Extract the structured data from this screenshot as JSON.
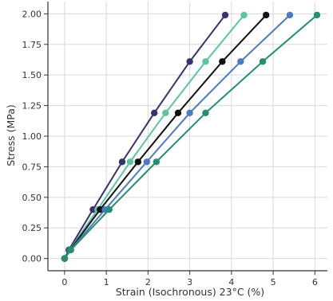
{
  "chart_data": {
    "type": "line",
    "title": "",
    "xlabel": "Strain (Isochronous) 23°C (%)",
    "ylabel": "Stress (MPa)",
    "xlim": [
      -0.4,
      6.3
    ],
    "ylim": [
      -0.1,
      2.1
    ],
    "xticks": [
      0,
      1,
      2,
      3,
      4,
      5,
      6
    ],
    "yticks": [
      "0.00",
      "0.25",
      "0.50",
      "0.75",
      "1.00",
      "1.25",
      "1.50",
      "1.75",
      "2.00"
    ],
    "grid": true,
    "legend": "none",
    "series": [
      {
        "color": "#3b3070",
        "points": [
          [
            0,
            0
          ],
          [
            0.1,
            0.07
          ],
          [
            0.68,
            0.4
          ],
          [
            1.38,
            0.79
          ],
          [
            2.15,
            1.19
          ],
          [
            3.0,
            1.61
          ],
          [
            3.85,
            1.99
          ]
        ]
      },
      {
        "color": "#5cc4a0",
        "points": [
          [
            0,
            0
          ],
          [
            0.12,
            0.07
          ],
          [
            0.79,
            0.4
          ],
          [
            1.57,
            0.79
          ],
          [
            2.42,
            1.19
          ],
          [
            3.38,
            1.61
          ],
          [
            4.3,
            1.99
          ]
        ]
      },
      {
        "color": "#111111",
        "points": [
          [
            0,
            0
          ],
          [
            0.13,
            0.07
          ],
          [
            0.85,
            0.4
          ],
          [
            1.76,
            0.79
          ],
          [
            2.72,
            1.19
          ],
          [
            3.78,
            1.61
          ],
          [
            4.83,
            1.99
          ]
        ]
      },
      {
        "color": "#4b7bbf",
        "points": [
          [
            0,
            0
          ],
          [
            0.14,
            0.07
          ],
          [
            0.97,
            0.4
          ],
          [
            1.97,
            0.79
          ],
          [
            3.0,
            1.19
          ],
          [
            4.22,
            1.61
          ],
          [
            5.4,
            1.99
          ]
        ]
      },
      {
        "color": "#22906e",
        "points": [
          [
            0,
            0
          ],
          [
            0.15,
            0.07
          ],
          [
            1.07,
            0.4
          ],
          [
            2.2,
            0.79
          ],
          [
            3.38,
            1.19
          ],
          [
            4.75,
            1.61
          ],
          [
            6.05,
            1.99
          ]
        ]
      }
    ]
  }
}
